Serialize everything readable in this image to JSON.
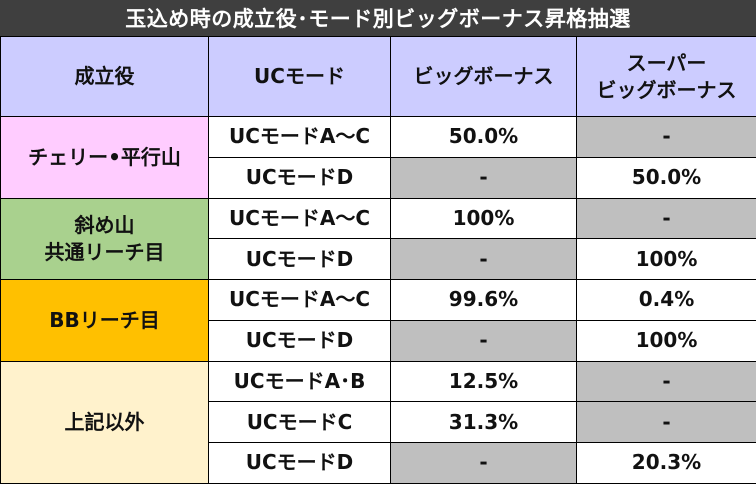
{
  "title": "玉込め時の成立役･モード別ビッグボーナス昇格抽選",
  "headers": {
    "col1": "成立役",
    "col2": "UCモード",
    "col3": "ビッグボーナス",
    "col4_line1": "スーパー",
    "col4_line2": "ビッグボーナス"
  },
  "colors": {
    "header": "#ccccff",
    "cherry": "#ffccff",
    "naname": "#a9d18e",
    "bb": "#ffc000",
    "other": "#fff2cc",
    "empty": "#bfbfbf",
    "title_bar": "#3f3f3f"
  },
  "groups": [
    {
      "label_lines": [
        "チェリー•平行山"
      ],
      "rows": [
        {
          "mode": "UCモードA～C",
          "big": "50.0%",
          "super": "-"
        },
        {
          "mode": "UCモードD",
          "big": "-",
          "super": "50.0%"
        }
      ]
    },
    {
      "label_lines": [
        "斜め山",
        "共通リーチ目"
      ],
      "rows": [
        {
          "mode": "UCモードA～C",
          "big": "100%",
          "super": "-"
        },
        {
          "mode": "UCモードD",
          "big": "-",
          "super": "100%"
        }
      ]
    },
    {
      "label_lines": [
        "BBリーチ目"
      ],
      "rows": [
        {
          "mode": "UCモードA～C",
          "big": "99.6%",
          "super": "0.4%"
        },
        {
          "mode": "UCモードD",
          "big": "-",
          "super": "100%"
        }
      ]
    },
    {
      "label_lines": [
        "上記以外"
      ],
      "rows": [
        {
          "mode": "UCモードA･B",
          "big": "12.5%",
          "super": "-"
        },
        {
          "mode": "UCモードC",
          "big": "31.3%",
          "super": "-"
        },
        {
          "mode": "UCモードD",
          "big": "-",
          "super": "20.3%"
        }
      ]
    }
  ]
}
